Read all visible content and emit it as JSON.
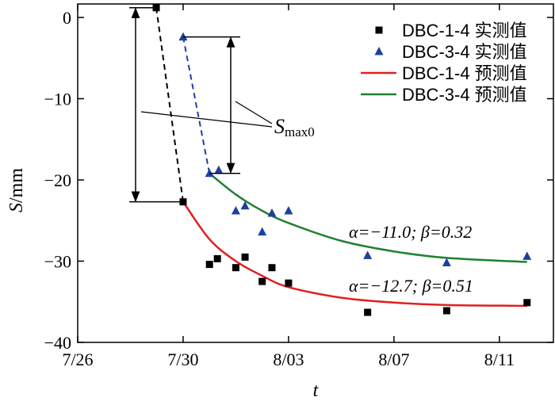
{
  "chart_data": {
    "type": "scatter",
    "xlabel": "t",
    "ylabel": "S/mm",
    "ylabel_italic": "S",
    "ylabel_unit": "/mm",
    "x_unit": "days since 7/26",
    "xlim": [
      0,
      18.05
    ],
    "ylim": [
      -40,
      1.66
    ],
    "x_ticks": [
      {
        "v": 0,
        "label": "7/26"
      },
      {
        "v": 4,
        "label": "7/30"
      },
      {
        "v": 8,
        "label": "8/03"
      },
      {
        "v": 12,
        "label": "8/07"
      },
      {
        "v": 16,
        "label": "8/11"
      }
    ],
    "y_ticks": [
      {
        "v": 0,
        "label": "0"
      },
      {
        "v": -10,
        "label": "−10"
      },
      {
        "v": -20,
        "label": "−20"
      },
      {
        "v": -30,
        "label": "−30"
      },
      {
        "v": -40,
        "label": "−40"
      }
    ],
    "series": [
      {
        "name": "DBC-1-4 实测值",
        "kind": "marker",
        "marker": "square",
        "color": "#000000",
        "x": [
          2.98,
          4,
          5,
          5.3,
          6,
          6.35,
          7,
          7.37,
          8,
          11,
          14,
          17.05
        ],
        "y": [
          1.2,
          -22.7,
          -30.4,
          -29.7,
          -30.8,
          -29.5,
          -32.5,
          -30.8,
          -32.7,
          -36.3,
          -36.1,
          -35.1
        ]
      },
      {
        "name": "DBC-3-4 实测值",
        "kind": "marker",
        "marker": "triangle",
        "color": "#1f3f9f",
        "x": [
          4,
          5,
          5.35,
          6,
          6.35,
          7,
          7.37,
          8,
          11,
          14,
          17.05
        ],
        "y": [
          -2.4,
          -19.2,
          -18.8,
          -23.8,
          -23.2,
          -26.4,
          -24.1,
          -23.8,
          -29.3,
          -30.2,
          -29.4
        ]
      },
      {
        "name": "DBC-1-4 预测值",
        "kind": "line",
        "color": "#e02020",
        "x": [
          4,
          5,
          6,
          7,
          8,
          10,
          12,
          14,
          17.05
        ],
        "y": [
          -22.7,
          -27.3,
          -30.0,
          -31.8,
          -33.2,
          -34.5,
          -35.1,
          -35.4,
          -35.5
        ]
      },
      {
        "name": "DBC-3-4 预测值",
        "kind": "line",
        "color": "#208030",
        "x": [
          5,
          6,
          7,
          8,
          10,
          12,
          14,
          17.05
        ],
        "y": [
          -19.2,
          -21.8,
          -23.8,
          -25.3,
          -27.5,
          -28.8,
          -29.6,
          -30.1
        ]
      }
    ],
    "dashed_connectors": [
      {
        "color": "#000000",
        "x": [
          2.98,
          4
        ],
        "y": [
          1.2,
          -22.7
        ]
      },
      {
        "color": "#1f3f9f",
        "x": [
          4,
          5
        ],
        "y": [
          -2.4,
          -19.2
        ]
      }
    ],
    "annotations": {
      "smax_label": "S",
      "smax_sub": "max0",
      "fit_green": "α=−11.0; β=0.32",
      "fit_red": "α=−12.7; β=0.51"
    },
    "legend_position": "top-right",
    "grid": false
  }
}
